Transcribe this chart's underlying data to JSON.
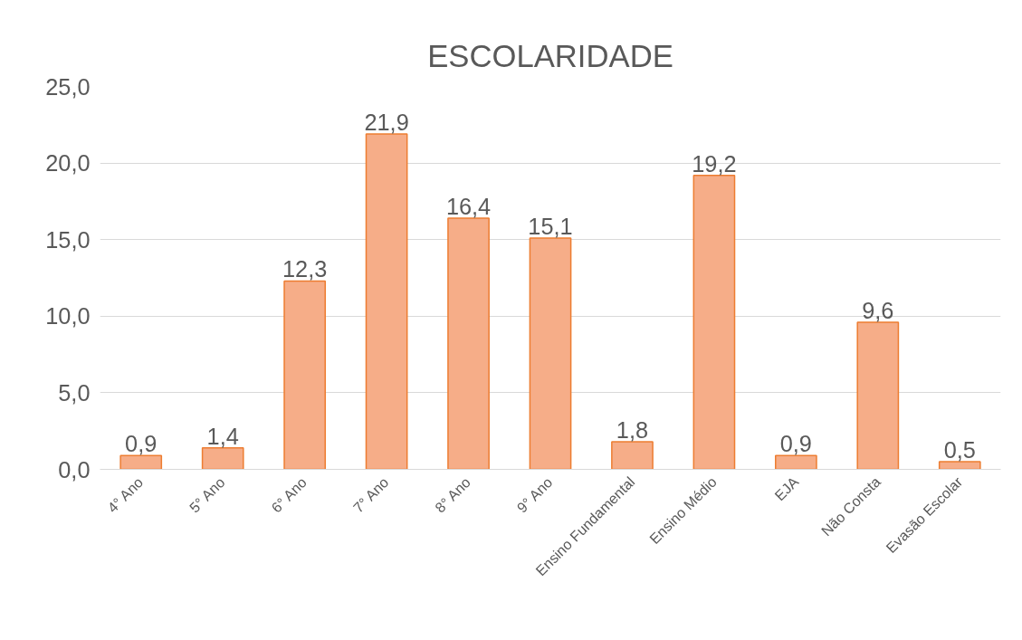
{
  "chart_data": {
    "type": "bar",
    "title": "ESCOLARIDADE",
    "categories": [
      "4° Ano",
      "5° Ano",
      "6° Ano",
      "7° Ano",
      "8° Ano",
      "9° Ano",
      "Ensino Fundamental",
      "Ensino Médio",
      "EJA",
      "Não Consta",
      "Evasão Escolar"
    ],
    "values": [
      0.9,
      1.4,
      12.3,
      21.9,
      16.4,
      15.1,
      1.8,
      19.2,
      0.9,
      9.6,
      0.5
    ],
    "value_labels": [
      "0,9",
      "1,4",
      "12,3",
      "21,9",
      "16,4",
      "15,1",
      "1,8",
      "19,2",
      "0,9",
      "9,6",
      "0,5"
    ],
    "color": "#f6ad88",
    "ylim": [
      0,
      25
    ],
    "yticks": [
      {
        "value": 0,
        "label": "0,0"
      },
      {
        "value": 5,
        "label": "5,0"
      },
      {
        "value": 10,
        "label": "10,0"
      },
      {
        "value": 15,
        "label": "15,0"
      },
      {
        "value": 20,
        "label": "20,0"
      },
      {
        "value": 25,
        "label": "25,0"
      }
    ],
    "grid": "y"
  }
}
